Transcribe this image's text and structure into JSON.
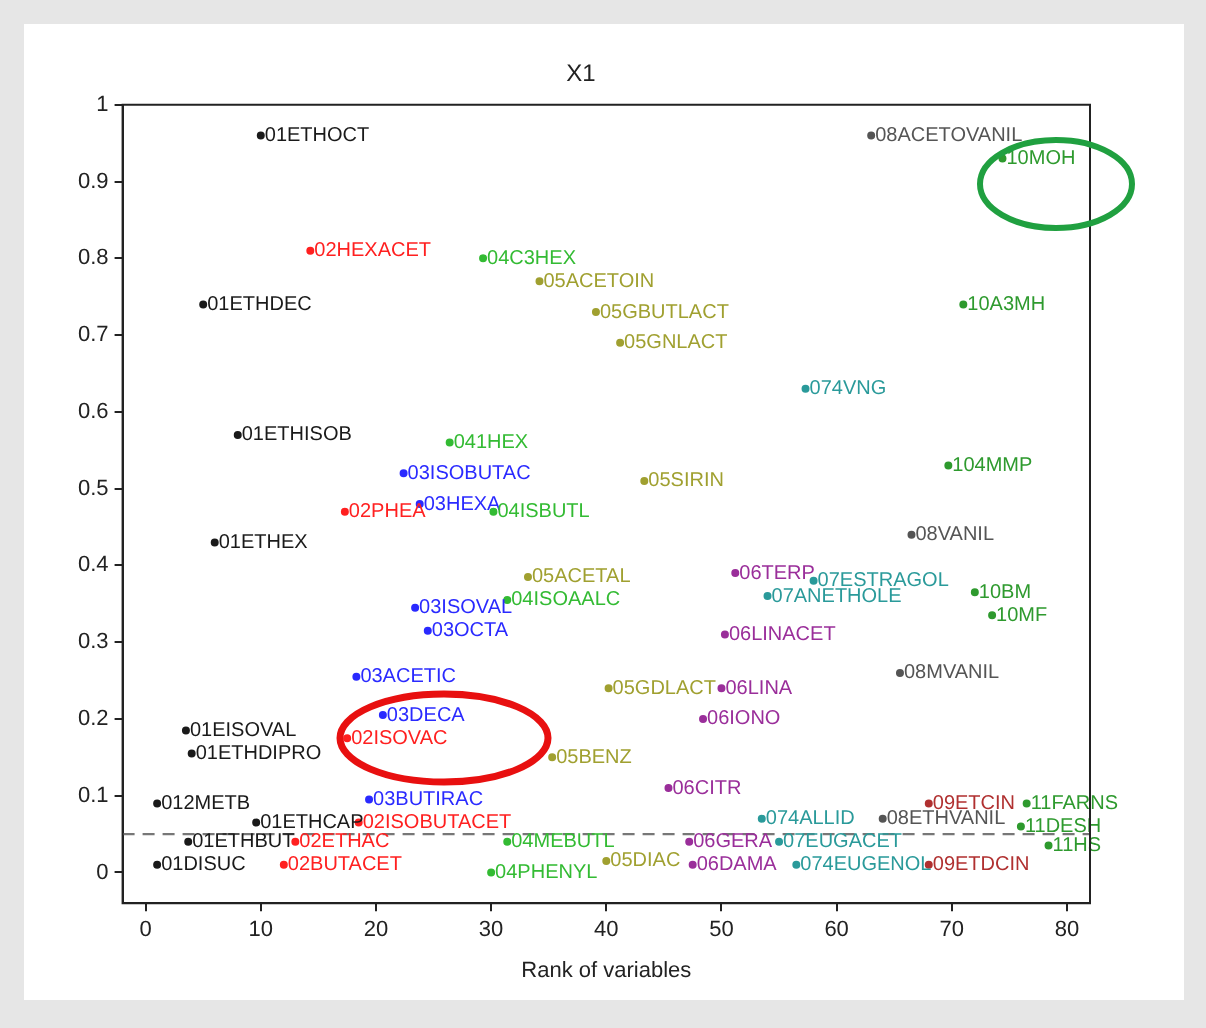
{
  "chart_data": {
    "type": "scatter",
    "title": "X1",
    "xlabel": "Rank of variables",
    "xlim": [
      -2,
      82
    ],
    "ylim": [
      -0.04,
      1
    ],
    "xticks": [
      0,
      10,
      20,
      30,
      40,
      50,
      60,
      70,
      80
    ],
    "yticks": [
      0,
      0.1,
      0.2,
      0.3,
      0.4,
      0.5,
      0.6,
      0.7,
      0.8,
      0.9,
      1
    ],
    "marker": "circle",
    "ref_lines": [
      {
        "axis": "y",
        "value": 0.05,
        "color": "#777777",
        "line_style": "dashed"
      }
    ],
    "series": [
      {
        "color": "#1a1a1a",
        "x": [
          10,
          5,
          8,
          6,
          3.5,
          4,
          1,
          9.6,
          3.7,
          1
        ],
        "values": [
          0.96,
          0.74,
          0.57,
          0.43,
          0.185,
          0.155,
          0.09,
          0.065,
          0.04,
          0.01
        ]
      },
      {
        "color": "#ff2020",
        "x": [
          14.3,
          17.3,
          17.5,
          18.5,
          13,
          12
        ],
        "values": [
          0.81,
          0.47,
          0.175,
          0.065,
          0.04,
          0.01
        ]
      },
      {
        "color": "#2a2aff",
        "x": [
          22.4,
          23.8,
          23.4,
          24.5,
          18.3,
          20.6,
          19.4
        ],
        "values": [
          0.52,
          0.48,
          0.345,
          0.315,
          0.255,
          0.205,
          0.095
        ]
      },
      {
        "color": "#33bb33",
        "x": [
          29.3,
          26.4,
          30.2,
          31.4,
          31.4,
          30
        ],
        "values": [
          0.8,
          0.56,
          0.47,
          0.355,
          0.04,
          0
        ]
      },
      {
        "color": "#a0a030",
        "x": [
          34.2,
          39.1,
          41.2,
          43.3,
          33.2,
          40.2,
          35.3,
          40
        ],
        "values": [
          0.77,
          0.73,
          0.69,
          0.51,
          0.385,
          0.24,
          0.15,
          0.015
        ]
      },
      {
        "color": "#9a2e9a",
        "x": [
          51.2,
          50.3,
          50,
          48.4,
          45.4,
          47.2,
          47.5
        ],
        "values": [
          0.39,
          0.31,
          0.24,
          0.2,
          0.11,
          0.04,
          0.01
        ]
      },
      {
        "color": "#2a9a9a",
        "x": [
          57.3,
          58,
          54,
          53.5,
          55,
          56.5
        ],
        "values": [
          0.63,
          0.38,
          0.36,
          0.07,
          0.04,
          0.01
        ]
      },
      {
        "color": "#555555",
        "x": [
          63,
          66.5,
          65.5,
          64
        ],
        "values": [
          0.96,
          0.44,
          0.26,
          0.07
        ]
      },
      {
        "color": "#b03030",
        "x": [
          68,
          68
        ],
        "values": [
          0.09,
          0.01
        ]
      },
      {
        "color": "#2e9a2e",
        "x": [
          74.4,
          71,
          69.7,
          72,
          73.5,
          76.5,
          76,
          78.4
        ],
        "values": [
          0.93,
          0.74,
          0.53,
          0.365,
          0.335,
          0.09,
          0.06,
          0.035
        ]
      }
    ],
    "annotations": [
      {
        "text": "01ETHOCT",
        "x": 10,
        "y": 0.96
      },
      {
        "text": "01ETHDEC",
        "x": 5,
        "y": 0.74
      },
      {
        "text": "01ETHISOB",
        "x": 8,
        "y": 0.57
      },
      {
        "text": "01ETHEX",
        "x": 6,
        "y": 0.43
      },
      {
        "text": "01EISOVAL",
        "x": 3.5,
        "y": 0.185
      },
      {
        "text": "01ETHDIPRO",
        "x": 4,
        "y": 0.155
      },
      {
        "text": "012METB",
        "x": 1,
        "y": 0.09
      },
      {
        "text": "01ETHCAP",
        "x": 9.6,
        "y": 0.065
      },
      {
        "text": "01ETHBUT",
        "x": 3.7,
        "y": 0.04
      },
      {
        "text": "01DISUC",
        "x": 1,
        "y": 0.01
      },
      {
        "text": "02HEXACET",
        "x": 14.3,
        "y": 0.81
      },
      {
        "text": "02PHEA",
        "x": 17.3,
        "y": 0.47
      },
      {
        "text": "02ISOVAC",
        "x": 17.5,
        "y": 0.175
      },
      {
        "text": "02ISOBUTACET",
        "x": 18.5,
        "y": 0.065
      },
      {
        "text": "02ETHAC",
        "x": 13,
        "y": 0.04
      },
      {
        "text": "02BUTACET",
        "x": 12,
        "y": 0.01
      },
      {
        "text": "03ISOBUTAC",
        "x": 22.4,
        "y": 0.52
      },
      {
        "text": "03HEXA",
        "x": 23.8,
        "y": 0.48
      },
      {
        "text": "03ISOVAL",
        "x": 23.4,
        "y": 0.345
      },
      {
        "text": "03OCTA",
        "x": 24.5,
        "y": 0.315
      },
      {
        "text": "03ACETIC",
        "x": 18.3,
        "y": 0.255
      },
      {
        "text": "03DECA",
        "x": 20.6,
        "y": 0.205
      },
      {
        "text": "03BUTIRAC",
        "x": 19.4,
        "y": 0.095
      },
      {
        "text": "04C3HEX",
        "x": 29.3,
        "y": 0.8
      },
      {
        "text": "041HEX",
        "x": 26.4,
        "y": 0.56
      },
      {
        "text": "04ISBUTL",
        "x": 30.2,
        "y": 0.47
      },
      {
        "text": "04ISOAALC",
        "x": 31.4,
        "y": 0.355
      },
      {
        "text": "04MEBUTL",
        "x": 31.4,
        "y": 0.04
      },
      {
        "text": "04PHENYL",
        "x": 30,
        "y": 0
      },
      {
        "text": "05ACETOIN",
        "x": 34.2,
        "y": 0.77
      },
      {
        "text": "05GBUTLACT",
        "x": 39.1,
        "y": 0.73
      },
      {
        "text": "05GNLACT",
        "x": 41.2,
        "y": 0.69
      },
      {
        "text": "05SIRIN",
        "x": 43.3,
        "y": 0.51
      },
      {
        "text": "05ACETAL",
        "x": 33.2,
        "y": 0.385
      },
      {
        "text": "05GDLACT",
        "x": 40.2,
        "y": 0.24
      },
      {
        "text": "05BENZ",
        "x": 35.3,
        "y": 0.15
      },
      {
        "text": "05DIAC",
        "x": 40,
        "y": 0.015
      },
      {
        "text": "06TERP",
        "x": 51.2,
        "y": 0.39
      },
      {
        "text": "06LINACET",
        "x": 50.3,
        "y": 0.31
      },
      {
        "text": "06LINA",
        "x": 50,
        "y": 0.24
      },
      {
        "text": "06IONO",
        "x": 48.4,
        "y": 0.2
      },
      {
        "text": "06CITR",
        "x": 45.4,
        "y": 0.11
      },
      {
        "text": "06GERA",
        "x": 47.2,
        "y": 0.04
      },
      {
        "text": "06DAMA",
        "x": 47.5,
        "y": 0.01
      },
      {
        "text": "074VNG",
        "x": 57.3,
        "y": 0.63
      },
      {
        "text": "07ESTRAGOL",
        "x": 58,
        "y": 0.38
      },
      {
        "text": "07ANETHOLE",
        "x": 54,
        "y": 0.36
      },
      {
        "text": "074ALLID",
        "x": 53.5,
        "y": 0.07
      },
      {
        "text": "07EUGACET",
        "x": 55,
        "y": 0.04
      },
      {
        "text": "074EUGENOL",
        "x": 56.5,
        "y": 0.01
      },
      {
        "text": "08ACETOVANIL",
        "x": 63,
        "y": 0.96
      },
      {
        "text": "08VANIL",
        "x": 66.5,
        "y": 0.44
      },
      {
        "text": "08MVANIL",
        "x": 65.5,
        "y": 0.26
      },
      {
        "text": "08ETHVANIL",
        "x": 64,
        "y": 0.07
      },
      {
        "text": "09ETCIN",
        "x": 68,
        "y": 0.09
      },
      {
        "text": "09ETDCIN",
        "x": 68,
        "y": 0.01
      },
      {
        "text": "10MOH",
        "x": 74.4,
        "y": 0.93
      },
      {
        "text": "10A3MH",
        "x": 71,
        "y": 0.74
      },
      {
        "text": "104MMP",
        "x": 69.7,
        "y": 0.53
      },
      {
        "text": "10BM",
        "x": 72,
        "y": 0.365
      },
      {
        "text": "10MF",
        "x": 73.5,
        "y": 0.335
      },
      {
        "text": "11FARNS",
        "x": 76.5,
        "y": 0.09
      },
      {
        "text": "11DESH",
        "x": 76,
        "y": 0.06
      },
      {
        "text": "11HS",
        "x": 78.4,
        "y": 0.035
      }
    ]
  }
}
